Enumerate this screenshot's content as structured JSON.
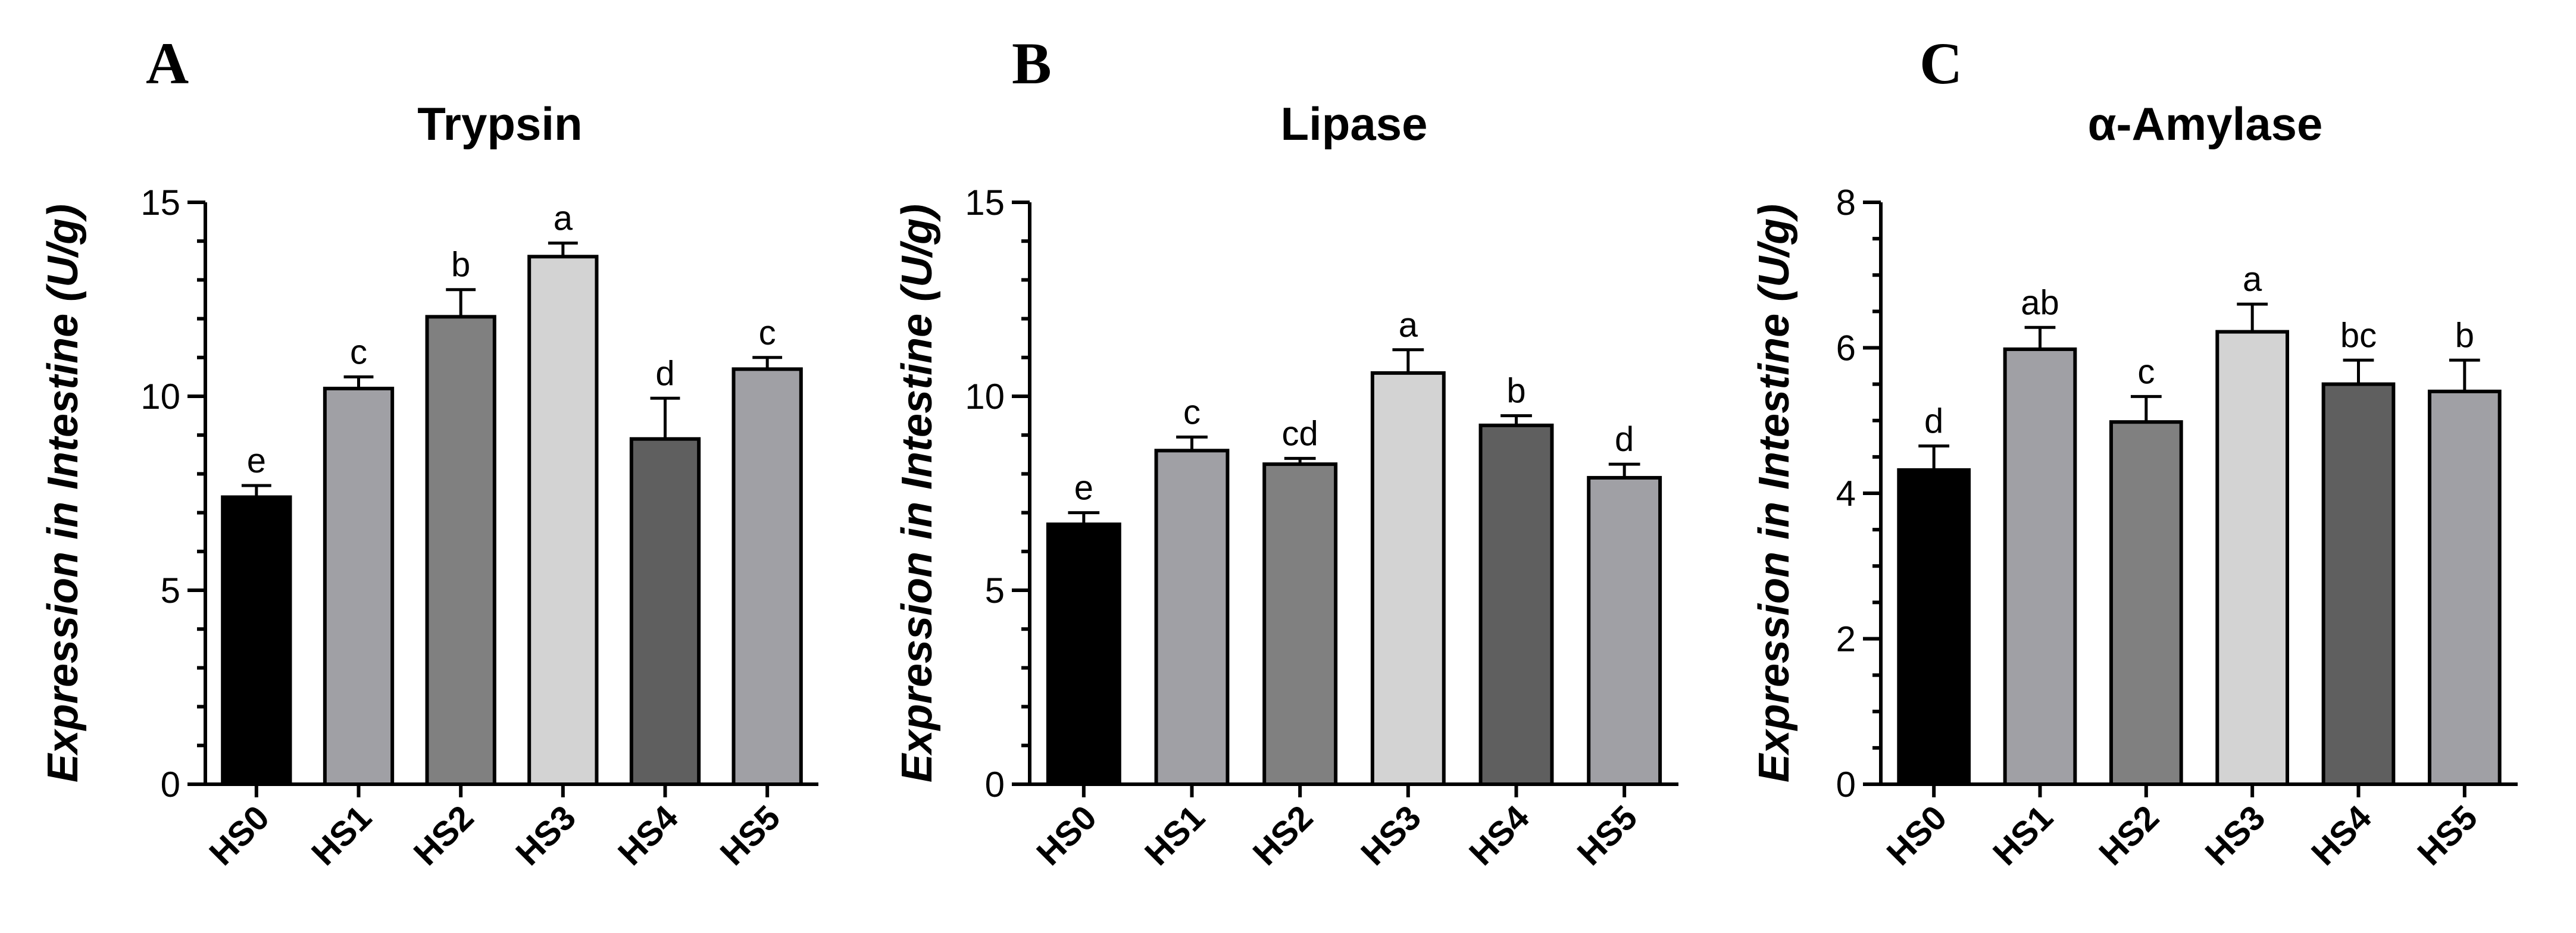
{
  "chart_data": [
    {
      "type": "bar",
      "panel": "A",
      "title": "Trypsin",
      "ylabel_prefix": "Expression in ",
      "ylabel_emph": "Intestine",
      "ylabel_suffix": " (U/g)",
      "ylim": [
        0,
        15
      ],
      "yticks": [
        0,
        5,
        10,
        15
      ],
      "minor_step": 1,
      "categories": [
        "HS0",
        "HS1",
        "HS2",
        "HS3",
        "HS4",
        "HS5"
      ],
      "values": [
        7.4,
        10.2,
        12.05,
        13.6,
        8.9,
        10.7
      ],
      "errors": [
        0.3,
        0.3,
        0.7,
        0.35,
        1.05,
        0.3
      ],
      "letters": [
        "e",
        "c",
        "b",
        "a",
        "d",
        "c"
      ],
      "colors": [
        "#000000",
        "#a0a0a5",
        "#808080",
        "#d3d3d3",
        "#5f5f5f",
        "#a0a0a5"
      ]
    },
    {
      "type": "bar",
      "panel": "B",
      "title": "Lipase",
      "ylabel_prefix": "Expression in ",
      "ylabel_emph": "Intestine",
      "ylabel_suffix": " (U/g)",
      "ylim": [
        0,
        15
      ],
      "yticks": [
        0,
        5,
        10,
        15
      ],
      "minor_step": 1,
      "categories": [
        "HS0",
        "HS1",
        "HS2",
        "HS3",
        "HS4",
        "HS5"
      ],
      "values": [
        6.7,
        8.6,
        8.25,
        10.6,
        9.25,
        7.9
      ],
      "errors": [
        0.3,
        0.35,
        0.15,
        0.6,
        0.25,
        0.35
      ],
      "letters": [
        "e",
        "c",
        "cd",
        "a",
        "b",
        "d"
      ],
      "colors": [
        "#000000",
        "#a0a0a5",
        "#808080",
        "#d3d3d3",
        "#5f5f5f",
        "#a0a0a5"
      ]
    },
    {
      "type": "bar",
      "panel": "C",
      "title": "α-Amylase",
      "ylabel_prefix": "Expression in ",
      "ylabel_emph": "Intestine",
      "ylabel_suffix": " (U/g)",
      "ylim": [
        0,
        8
      ],
      "yticks": [
        0,
        2,
        4,
        6,
        8
      ],
      "minor_step": 0.5,
      "categories": [
        "HS0",
        "HS1",
        "HS2",
        "HS3",
        "HS4",
        "HS5"
      ],
      "values": [
        4.32,
        5.98,
        4.98,
        6.22,
        5.5,
        5.4
      ],
      "errors": [
        0.33,
        0.3,
        0.35,
        0.38,
        0.33,
        0.43
      ],
      "letters": [
        "d",
        "ab",
        "c",
        "a",
        "bc",
        "b"
      ],
      "colors": [
        "#000000",
        "#a0a0a5",
        "#808080",
        "#d3d3d3",
        "#5f5f5f",
        "#a0a0a5"
      ]
    }
  ]
}
